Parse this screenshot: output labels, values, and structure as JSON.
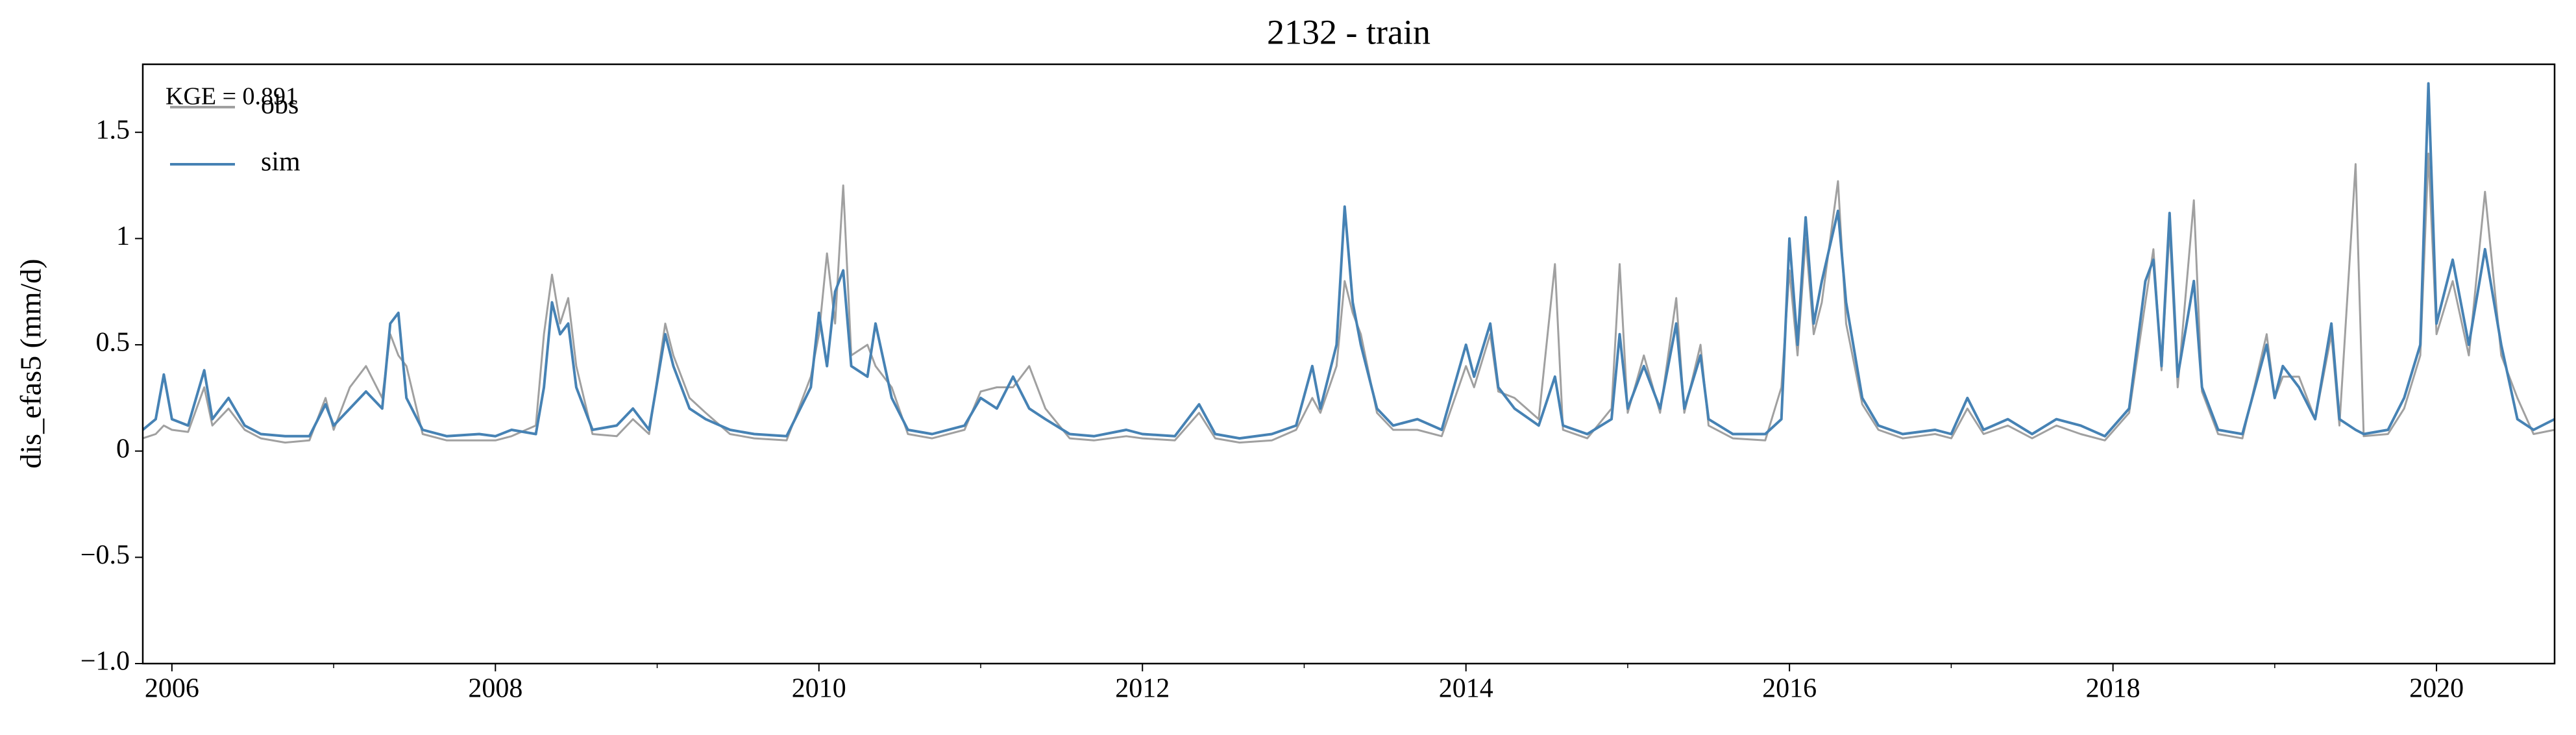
{
  "chart_data": {
    "type": "line",
    "title": "2132 - train",
    "ylabel": "dis_efas5 (mm/d)",
    "annotation": "KGE = 0.891",
    "legend": "upper left",
    "x": [
      2005.82,
      2005.9,
      2005.95,
      2006.0,
      2006.1,
      2006.2,
      2006.25,
      2006.35,
      2006.45,
      2006.55,
      2006.7,
      2006.85,
      2006.95,
      2007.0,
      2007.1,
      2007.2,
      2007.3,
      2007.35,
      2007.4,
      2007.45,
      2007.55,
      2007.7,
      2007.9,
      2008.0,
      2008.1,
      2008.25,
      2008.3,
      2008.35,
      2008.4,
      2008.45,
      2008.5,
      2008.6,
      2008.75,
      2008.85,
      2008.95,
      2009.05,
      2009.1,
      2009.2,
      2009.3,
      2009.45,
      2009.6,
      2009.8,
      2009.95,
      2010.0,
      2010.05,
      2010.1,
      2010.15,
      2010.2,
      2010.3,
      2010.35,
      2010.45,
      2010.55,
      2010.7,
      2010.9,
      2011.0,
      2011.1,
      2011.2,
      2011.3,
      2011.4,
      2011.55,
      2011.7,
      2011.9,
      2012.0,
      2012.2,
      2012.35,
      2012.45,
      2012.6,
      2012.8,
      2012.95,
      2013.05,
      2013.1,
      2013.2,
      2013.25,
      2013.3,
      2013.35,
      2013.45,
      2013.55,
      2013.7,
      2013.85,
      2014.0,
      2014.05,
      2014.15,
      2014.2,
      2014.3,
      2014.45,
      2014.55,
      2014.6,
      2014.75,
      2014.9,
      2014.95,
      2015.0,
      2015.1,
      2015.2,
      2015.3,
      2015.35,
      2015.45,
      2015.5,
      2015.65,
      2015.85,
      2015.95,
      2016.0,
      2016.05,
      2016.1,
      2016.15,
      2016.2,
      2016.3,
      2016.35,
      2016.45,
      2016.55,
      2016.7,
      2016.9,
      2017.0,
      2017.1,
      2017.2,
      2017.35,
      2017.5,
      2017.65,
      2017.8,
      2017.95,
      2018.1,
      2018.2,
      2018.25,
      2018.3,
      2018.35,
      2018.4,
      2018.5,
      2018.55,
      2018.65,
      2018.8,
      2018.95,
      2019.0,
      2019.05,
      2019.15,
      2019.25,
      2019.35,
      2019.4,
      2019.5,
      2019.55,
      2019.7,
      2019.8,
      2019.9,
      2019.95,
      2020.0,
      2020.1,
      2020.2,
      2020.3,
      2020.4,
      2020.5,
      2020.6,
      2020.73
    ],
    "series": [
      {
        "name": "obs",
        "color": "#a0a0a0",
        "values": [
          0.06,
          0.08,
          0.12,
          0.1,
          0.09,
          0.3,
          0.12,
          0.2,
          0.1,
          0.06,
          0.04,
          0.05,
          0.25,
          0.1,
          0.3,
          0.4,
          0.25,
          0.55,
          0.45,
          0.4,
          0.08,
          0.05,
          0.05,
          0.05,
          0.07,
          0.12,
          0.55,
          0.83,
          0.6,
          0.72,
          0.4,
          0.08,
          0.07,
          0.15,
          0.08,
          0.6,
          0.45,
          0.25,
          0.18,
          0.08,
          0.06,
          0.05,
          0.35,
          0.55,
          0.93,
          0.6,
          1.25,
          0.45,
          0.5,
          0.4,
          0.3,
          0.08,
          0.06,
          0.1,
          0.28,
          0.3,
          0.3,
          0.4,
          0.2,
          0.06,
          0.05,
          0.07,
          0.06,
          0.05,
          0.18,
          0.06,
          0.04,
          0.05,
          0.1,
          0.25,
          0.18,
          0.4,
          0.8,
          0.65,
          0.55,
          0.18,
          0.1,
          0.1,
          0.07,
          0.4,
          0.3,
          0.55,
          0.28,
          0.25,
          0.15,
          0.88,
          0.1,
          0.06,
          0.2,
          0.88,
          0.18,
          0.45,
          0.18,
          0.72,
          0.18,
          0.5,
          0.12,
          0.06,
          0.05,
          0.3,
          0.85,
          0.45,
          1.0,
          0.55,
          0.7,
          1.27,
          0.6,
          0.22,
          0.1,
          0.06,
          0.08,
          0.06,
          0.2,
          0.08,
          0.12,
          0.06,
          0.12,
          0.08,
          0.05,
          0.18,
          0.7,
          0.95,
          0.38,
          1.05,
          0.3,
          1.18,
          0.28,
          0.08,
          0.06,
          0.55,
          0.25,
          0.35,
          0.35,
          0.15,
          0.55,
          0.12,
          1.35,
          0.07,
          0.08,
          0.2,
          0.45,
          1.4,
          0.55,
          0.8,
          0.45,
          1.22,
          0.45,
          0.25,
          0.08,
          0.1
        ]
      },
      {
        "name": "sim",
        "color": "#4682b4",
        "values": [
          0.1,
          0.15,
          0.36,
          0.15,
          0.12,
          0.38,
          0.15,
          0.25,
          0.12,
          0.08,
          0.07,
          0.07,
          0.22,
          0.12,
          0.2,
          0.28,
          0.2,
          0.6,
          0.65,
          0.25,
          0.1,
          0.07,
          0.08,
          0.07,
          0.1,
          0.08,
          0.3,
          0.7,
          0.55,
          0.6,
          0.3,
          0.1,
          0.12,
          0.2,
          0.1,
          0.55,
          0.4,
          0.2,
          0.15,
          0.1,
          0.08,
          0.07,
          0.3,
          0.65,
          0.4,
          0.75,
          0.85,
          0.4,
          0.35,
          0.6,
          0.25,
          0.1,
          0.08,
          0.12,
          0.25,
          0.2,
          0.35,
          0.2,
          0.15,
          0.08,
          0.07,
          0.1,
          0.08,
          0.07,
          0.22,
          0.08,
          0.06,
          0.08,
          0.12,
          0.4,
          0.2,
          0.5,
          1.15,
          0.7,
          0.5,
          0.2,
          0.12,
          0.15,
          0.1,
          0.5,
          0.35,
          0.6,
          0.3,
          0.2,
          0.12,
          0.35,
          0.12,
          0.08,
          0.15,
          0.55,
          0.2,
          0.4,
          0.2,
          0.6,
          0.2,
          0.45,
          0.15,
          0.08,
          0.08,
          0.15,
          1.0,
          0.5,
          1.1,
          0.6,
          0.8,
          1.13,
          0.7,
          0.25,
          0.12,
          0.08,
          0.1,
          0.08,
          0.25,
          0.1,
          0.15,
          0.08,
          0.15,
          0.12,
          0.07,
          0.2,
          0.8,
          0.9,
          0.4,
          1.12,
          0.35,
          0.8,
          0.3,
          0.1,
          0.08,
          0.5,
          0.25,
          0.4,
          0.3,
          0.15,
          0.6,
          0.15,
          0.1,
          0.08,
          0.1,
          0.25,
          0.5,
          1.73,
          0.6,
          0.9,
          0.5,
          0.95,
          0.5,
          0.15,
          0.1,
          0.15
        ]
      }
    ],
    "xlim": [
      2005.82,
      2020.73
    ],
    "xticks": [
      2006,
      2008,
      2010,
      2012,
      2014,
      2016,
      2018,
      2020
    ],
    "xminorticks": [
      2007,
      2009,
      2011,
      2013,
      2015,
      2017,
      2019
    ],
    "ylim": [
      -1.0,
      1.82
    ],
    "yticks": [
      {
        "value": -1.0,
        "label": "−1.0"
      },
      {
        "value": -0.5,
        "label": "−0.5"
      },
      0.0,
      0.5,
      1.0,
      1.5
    ]
  }
}
